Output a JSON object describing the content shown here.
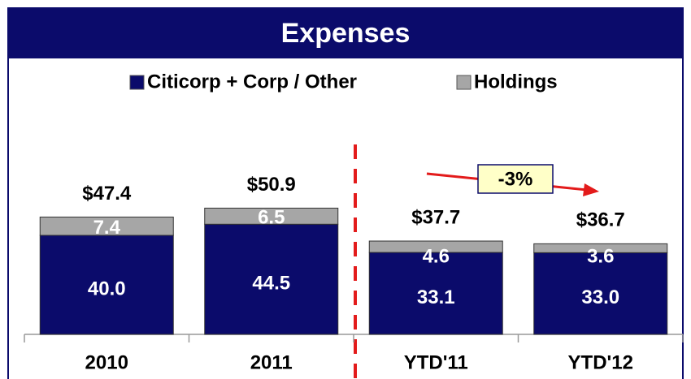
{
  "chart_data": {
    "type": "stacked_bar",
    "title": "Expenses",
    "categories": [
      "2010",
      "2011",
      "YTD'11",
      "YTD'12"
    ],
    "series": [
      {
        "name": "Citicorp + Corp / Other",
        "color": "#0b0b6b",
        "values": [
          40.0,
          44.5,
          33.1,
          33.0
        ],
        "value_labels": [
          "40.0",
          "44.5",
          "33.1",
          "33.0"
        ]
      },
      {
        "name": "Holdings",
        "color": "#a6a6a6",
        "values": [
          7.4,
          6.5,
          4.6,
          3.6
        ],
        "value_labels": [
          "7.4",
          "6.5",
          "4.6",
          "3.6"
        ]
      }
    ],
    "totals": [
      47.4,
      50.9,
      37.7,
      36.7
    ],
    "total_labels": [
      "$47.4",
      "$50.9",
      "$37.7",
      "$36.7"
    ],
    "annotation": "-3%"
  }
}
